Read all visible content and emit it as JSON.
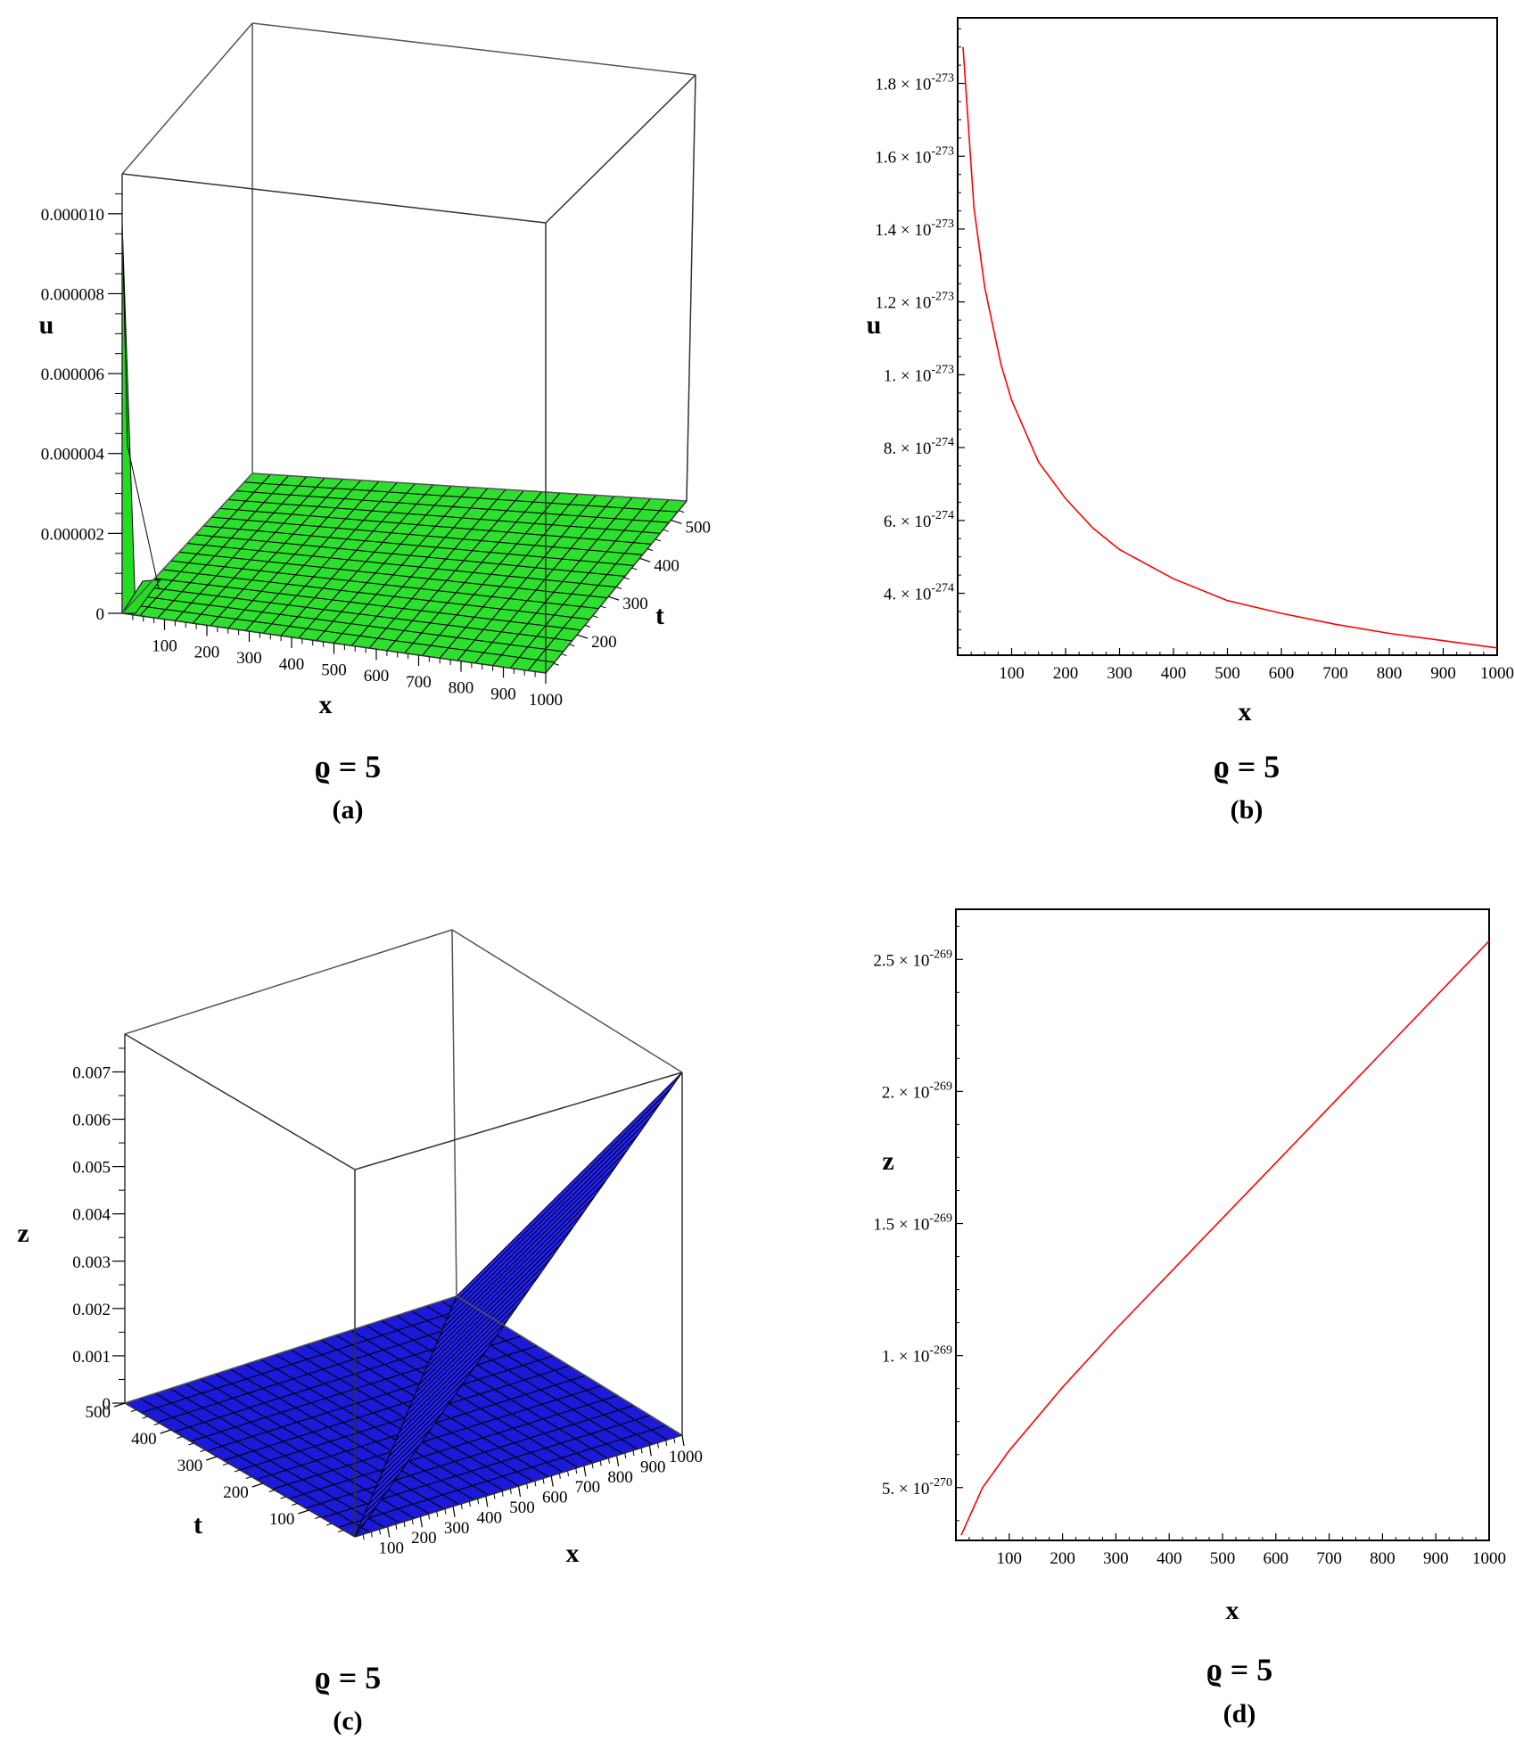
{
  "panels": [
    {
      "id": "a",
      "caption_param": "ϱ = 5",
      "caption_label": "(a)"
    },
    {
      "id": "b",
      "caption_param": "ϱ = 5",
      "caption_label": "(b)"
    },
    {
      "id": "c",
      "caption_param": "ϱ = 5",
      "caption_label": "(c)"
    },
    {
      "id": "d",
      "caption_param": "ϱ = 5",
      "caption_label": "(d)"
    }
  ],
  "chart_data": [
    {
      "panel": "a",
      "type": "surface3d",
      "xlabel": "x",
      "ylabel": "t",
      "zlabel": "u",
      "x_ticks": [
        "100",
        "200",
        "300",
        "400",
        "500",
        "600",
        "700",
        "800",
        "900",
        "1000"
      ],
      "t_ticks": [
        "200",
        "300",
        "400",
        "500"
      ],
      "z_ticks": [
        "0",
        "0.000002",
        "0.000004",
        "0.000006",
        "0.000008",
        "0.000010"
      ],
      "xlim": [
        0,
        1000
      ],
      "tlim": [
        100,
        550
      ],
      "zlim": [
        0,
        1.1e-05
      ],
      "color": "#33ee33",
      "description_values": {
        "peak_u_near_x0": 1.05e-05,
        "u_elsewhere": 0
      }
    },
    {
      "panel": "b",
      "type": "line",
      "xlabel": "x",
      "ylabel": "u",
      "color": "#ff0000",
      "x_ticks": [
        "100",
        "200",
        "300",
        "400",
        "500",
        "600",
        "700",
        "800",
        "900",
        "1000"
      ],
      "y_ticks": [
        {
          "mantissa": "4.",
          "exponent": "-274"
        },
        {
          "mantissa": "6.",
          "exponent": "-274"
        },
        {
          "mantissa": "8.",
          "exponent": "-274"
        },
        {
          "mantissa": "1.",
          "exponent": "-273"
        },
        {
          "mantissa": "1.2",
          "exponent": "-273"
        },
        {
          "mantissa": "1.4",
          "exponent": "-273"
        },
        {
          "mantissa": "1.6",
          "exponent": "-273"
        },
        {
          "mantissa": "1.8",
          "exponent": "-273"
        }
      ],
      "xlim": [
        0,
        1000
      ],
      "ylim_mantissa_e_minus_274": [
        2.3,
        19.8
      ],
      "x": [
        10,
        30,
        50,
        80,
        100,
        150,
        200,
        250,
        300,
        400,
        500,
        600,
        700,
        800,
        900,
        1000
      ],
      "y_mantissa_e_minus_274": [
        19.0,
        14.6,
        12.4,
        10.3,
        9.3,
        7.6,
        6.6,
        5.8,
        5.2,
        4.4,
        3.8,
        3.45,
        3.15,
        2.9,
        2.7,
        2.5
      ]
    },
    {
      "panel": "c",
      "type": "surface3d",
      "xlabel": "x",
      "ylabel": "t",
      "zlabel": "z",
      "x_ticks": [
        "100",
        "200",
        "300",
        "400",
        "500",
        "600",
        "700",
        "800",
        "900",
        "1000"
      ],
      "t_ticks": [
        "100",
        "200",
        "300",
        "400",
        "500"
      ],
      "z_ticks": [
        "0",
        "0.001",
        "0.002",
        "0.003",
        "0.004",
        "0.005",
        "0.006",
        "0.007"
      ],
      "xlim": [
        0,
        1000
      ],
      "tlim": [
        0,
        500
      ],
      "zlim": [
        0,
        0.0078
      ],
      "color": "#1a1aff",
      "description_values": {
        "max_z_at_x1000_t0": 0.0071,
        "z_elsewhere": 0
      }
    },
    {
      "panel": "d",
      "type": "line",
      "xlabel": "x",
      "ylabel": "z",
      "color": "#ff0000",
      "x_ticks": [
        "100",
        "200",
        "300",
        "400",
        "500",
        "600",
        "700",
        "800",
        "900",
        "1000"
      ],
      "y_ticks": [
        {
          "mantissa": "5.",
          "exponent": "-270"
        },
        {
          "mantissa": "1.",
          "exponent": "-269"
        },
        {
          "mantissa": "1.5",
          "exponent": "-269"
        },
        {
          "mantissa": "2.",
          "exponent": "-269"
        },
        {
          "mantissa": "2.5",
          "exponent": "-269"
        }
      ],
      "xlim": [
        0,
        1000
      ],
      "ylim_mantissa_e_minus_270": [
        3.0,
        26.9
      ],
      "x": [
        10,
        50,
        100,
        200,
        300,
        400,
        500,
        600,
        700,
        800,
        900,
        1000
      ],
      "y_mantissa_e_minus_270": [
        3.2,
        5.0,
        6.4,
        8.8,
        11.0,
        13.1,
        15.2,
        17.3,
        19.4,
        21.5,
        23.6,
        25.7
      ]
    }
  ]
}
